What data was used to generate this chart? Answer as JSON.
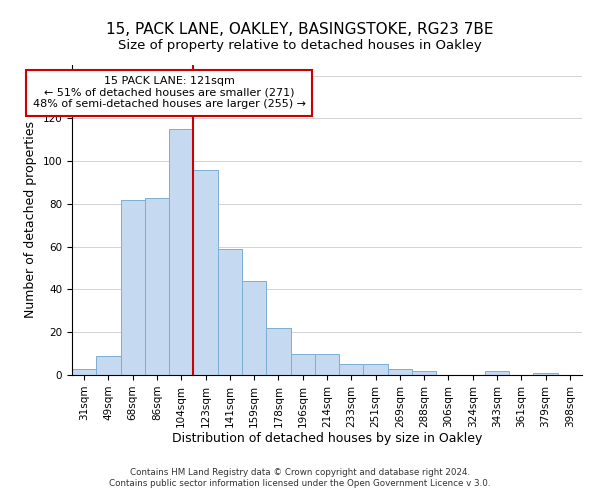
{
  "title": "15, PACK LANE, OAKLEY, BASINGSTOKE, RG23 7BE",
  "subtitle": "Size of property relative to detached houses in Oakley",
  "xlabel": "Distribution of detached houses by size in Oakley",
  "ylabel": "Number of detached properties",
  "bar_labels": [
    "31sqm",
    "49sqm",
    "68sqm",
    "86sqm",
    "104sqm",
    "123sqm",
    "141sqm",
    "159sqm",
    "178sqm",
    "196sqm",
    "214sqm",
    "233sqm",
    "251sqm",
    "269sqm",
    "288sqm",
    "306sqm",
    "324sqm",
    "343sqm",
    "361sqm",
    "379sqm",
    "398sqm"
  ],
  "bar_values": [
    3,
    9,
    82,
    83,
    115,
    96,
    59,
    44,
    22,
    10,
    10,
    5,
    5,
    3,
    2,
    0,
    0,
    2,
    0,
    1,
    0
  ],
  "bar_color": "#c5d9f1",
  "bar_edge_color": "#7bafd4",
  "vline_color": "#cc0000",
  "vline_bar_index": 5,
  "annotation_title": "15 PACK LANE: 121sqm",
  "annotation_line1": "← 51% of detached houses are smaller (271)",
  "annotation_line2": "48% of semi-detached houses are larger (255) →",
  "annotation_box_color": "#ffffff",
  "annotation_box_edgecolor": "#cc0000",
  "ylim": [
    0,
    145
  ],
  "footer1": "Contains HM Land Registry data © Crown copyright and database right 2024.",
  "footer2": "Contains public sector information licensed under the Open Government Licence v 3.0.",
  "title_fontsize": 11,
  "subtitle_fontsize": 9.5,
  "xlabel_fontsize": 9,
  "ylabel_fontsize": 9,
  "tick_fontsize": 7.5
}
